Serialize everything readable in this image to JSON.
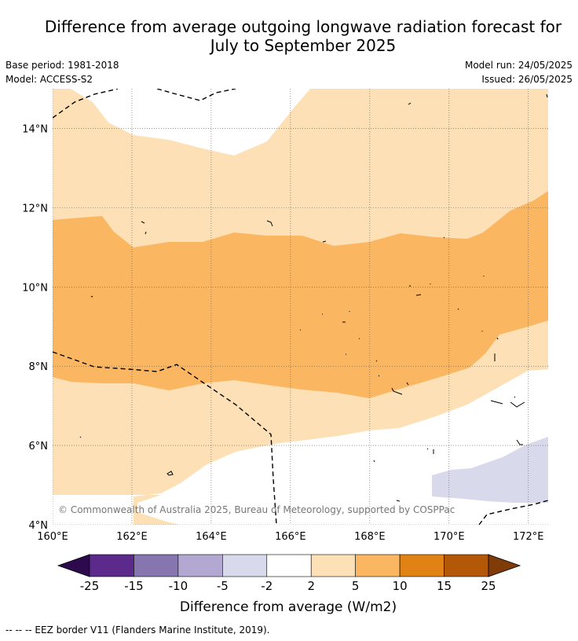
{
  "title_line1": "Difference from average outgoing longwave radiation forecast for",
  "title_line2": "July to September 2025",
  "meta": {
    "base_period": "Base period: 1981-2018",
    "model": "Model: ACCESS-S2",
    "model_run": "Model run: 24/05/2025",
    "issued": "Issued: 26/05/2025"
  },
  "map": {
    "lon_ticks": [
      "160°E",
      "162°E",
      "164°E",
      "166°E",
      "168°E",
      "170°E",
      "172°E"
    ],
    "lat_ticks": [
      "4°N",
      "6°N",
      "8°N",
      "10°N",
      "12°N",
      "14°N"
    ],
    "lon_range": [
      160,
      172.5
    ],
    "lat_range": [
      4,
      15
    ],
    "copyright": "© Commonwealth of Australia 2025, Bureau of Meteorology, supported by COSPPac"
  },
  "colorbar": {
    "label": "Difference from average (W/m2)",
    "ticks": [
      "-25",
      "-15",
      "-10",
      "-5",
      "-2",
      "2",
      "5",
      "10",
      "15",
      "25"
    ],
    "colors": [
      "#2d0a4e",
      "#5b2a8a",
      "#8775b0",
      "#b2a8d2",
      "#d9d9ec",
      "#ffffff",
      "#fde0b6",
      "#fbb662",
      "#e08214",
      "#b35806",
      "#7f3b08"
    ]
  },
  "footnote": "--  --  -- EEZ border V11 (Flanders Marine Institute, 2019)."
}
